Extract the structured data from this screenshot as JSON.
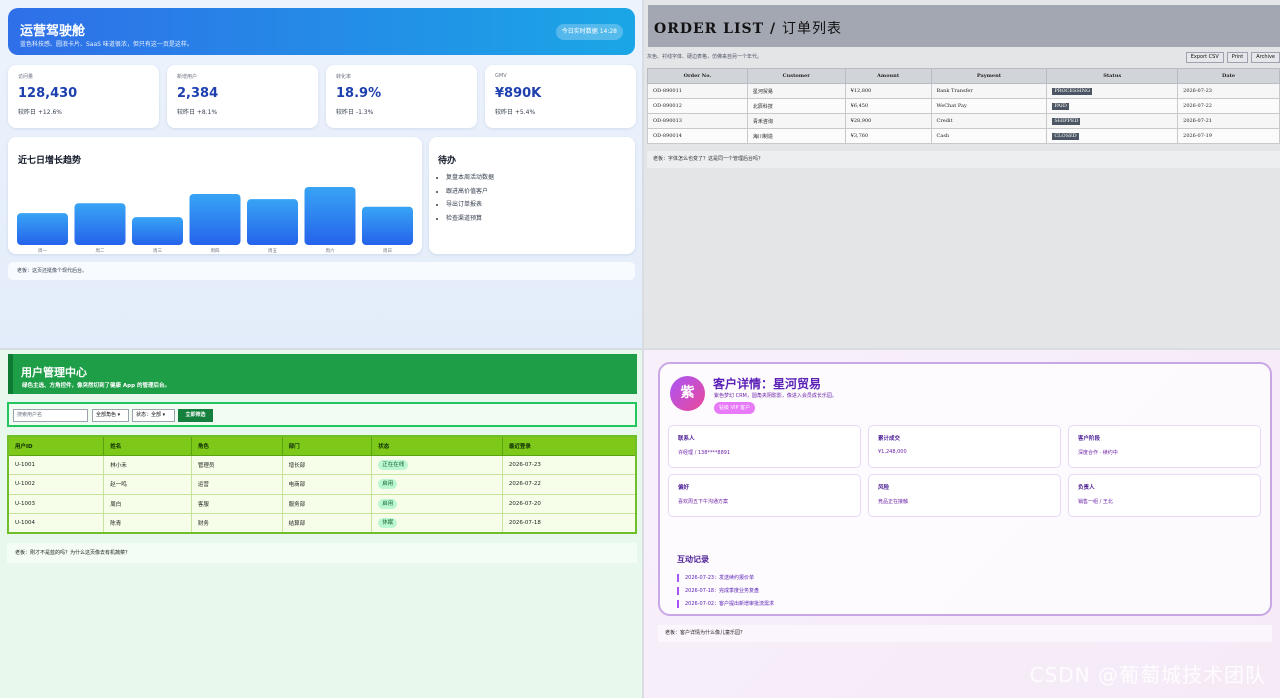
{
  "dashboard": {
    "title": "运营驾驶舱",
    "subtitle": "蓝色科技感、圆浪卡片、SaaS 味道很浓，但只有这一页是这样。",
    "pill": "今日实时数据 14:28",
    "kpis": [
      {
        "label": "访问量",
        "value": "128,430",
        "delta": "较昨日 +12.6%"
      },
      {
        "label": "新增用户",
        "value": "2,384",
        "delta": "较昨日 +8.1%"
      },
      {
        "label": "转化率",
        "value": "18.9%",
        "delta": "较昨日 -1.3%"
      },
      {
        "label": "GMV",
        "value": "¥890K",
        "delta": "较昨日 +5.4%"
      }
    ],
    "trend_title": "近七日增长趋势",
    "todo_title": "待办",
    "todos": [
      "复盘本周活动数据",
      "跟进高价值客户",
      "导出订单报表",
      "检查渠道预算"
    ],
    "note": "老板：这页还挺像个现代后台。"
  },
  "chart_data": {
    "type": "bar",
    "categories": [
      "周一",
      "周二",
      "周三",
      "周四",
      "周五",
      "周六",
      "周日"
    ],
    "values": [
      55,
      72,
      48,
      88,
      79,
      100,
      66
    ],
    "ylim": [
      0,
      100
    ],
    "title": "近七日增长趋势",
    "xlabel": "",
    "ylabel": "",
    "colors": {
      "top": "#38a4f5",
      "bottom": "#2563eb"
    }
  },
  "orders": {
    "title_en": "ORDER LIST",
    "title_cn": "订单列表",
    "subtitle": "灰色、衬线字体、硬边表格，仿佛来自另一个年代。",
    "buttons": [
      "Export CSV",
      "Print",
      "Archive"
    ],
    "columns": [
      "Order No.",
      "Customer",
      "Amount",
      "Payment",
      "Status",
      "Date"
    ],
    "rows": [
      [
        "OD-890011",
        "星河贸易",
        "¥12,800",
        "Bank Transfer",
        "PROCESSING",
        "2026-07-23"
      ],
      [
        "OD-890012",
        "北辰科技",
        "¥6,450",
        "WeChat Pay",
        "PAID",
        "2026-07-22"
      ],
      [
        "OD-890013",
        "青禾咨询",
        "¥28,900",
        "Credit",
        "SHIPPED",
        "2026-07-21"
      ],
      [
        "OD-890014",
        "海川制造",
        "¥3,760",
        "Cash",
        "CLOSED",
        "2026-07-19"
      ]
    ],
    "note": "老板：字体怎么也变了？这是同一个管理后台吗？"
  },
  "users": {
    "title": "用户管理中心",
    "subtitle": "绿色主选、方角控件，像突然切到了健康 App 的管理后台。",
    "search_placeholder": "搜索用户名",
    "role_select": "全部角色",
    "status_select": "状态：全部",
    "filter_button": "立即筛选",
    "columns": [
      "用户ID",
      "姓名",
      "角色",
      "部门",
      "状态",
      "最近登录"
    ],
    "rows": [
      [
        "U-1001",
        "林小禾",
        "管理员",
        "增长部",
        "正在在线",
        "2026-07-23"
      ],
      [
        "U-1002",
        "赵一鸣",
        "运营",
        "电商部",
        "启用",
        "2026-07-22"
      ],
      [
        "U-1003",
        "周白",
        "客服",
        "服务部",
        "启用",
        "2026-07-20"
      ],
      [
        "U-1004",
        "陈青",
        "财务",
        "结算部",
        "休眠",
        "2026-07-18"
      ]
    ],
    "note": "老板：刚才不是蓝的吗？为什么这页像去有机蔬菜？"
  },
  "customer": {
    "avatar": "紫",
    "title": "客户详情：星河贸易",
    "subtitle": "紫色梦幻 CRM，圆角夹阴影影，像进入会员成长乐园。",
    "badge": "钻级 VIP 客户",
    "fields": [
      {
        "label": "联系人",
        "value": "许经理 / 138****8891"
      },
      {
        "label": "累计成交",
        "value": "¥1,248,000"
      },
      {
        "label": "客户阶段",
        "value": "深度合作 · 续约中"
      },
      {
        "label": "偏好",
        "value": "喜欢周五下午沟通方案"
      },
      {
        "label": "风险",
        "value": "竞品正在接触"
      },
      {
        "label": "负责人",
        "value": "销售一组 / 王北"
      }
    ],
    "log_title": "互动记录",
    "logs": [
      "2026-07-23：发送续约报价单",
      "2026-07-18：完成季度业务复盘",
      "2026-07-02：客户提出新增审批流需求"
    ],
    "note": "老板：客户详情为什么像儿童乐园？"
  },
  "watermark": "CSDN @葡萄城技术团队"
}
